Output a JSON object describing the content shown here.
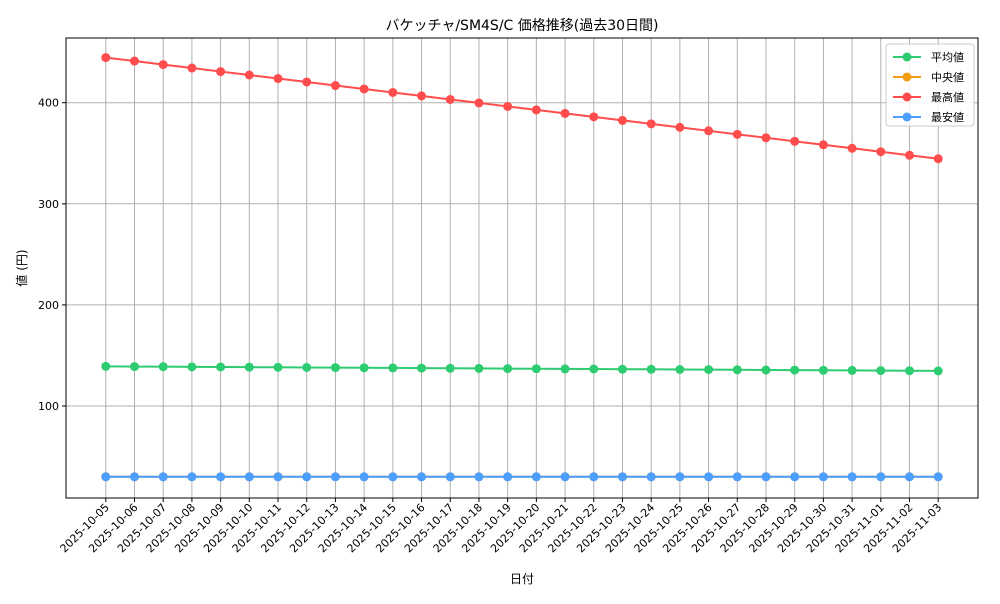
{
  "chart_data": {
    "type": "line",
    "title": "バケッチャ/SM4S/C 価格推移(過去30日間)",
    "xlabel": "日付",
    "ylabel": "値 (円)",
    "ylim": [
      9,
      464
    ],
    "yticks": [
      100,
      200,
      300,
      400
    ],
    "grid": true,
    "legend_position": "top-right",
    "categories": [
      "2025-10-05",
      "2025-10-06",
      "2025-10-07",
      "2025-10-08",
      "2025-10-09",
      "2025-10-10",
      "2025-10-11",
      "2025-10-12",
      "2025-10-13",
      "2025-10-14",
      "2025-10-15",
      "2025-10-16",
      "2025-10-17",
      "2025-10-18",
      "2025-10-19",
      "2025-10-20",
      "2025-10-21",
      "2025-10-22",
      "2025-10-23",
      "2025-10-24",
      "2025-10-25",
      "2025-10-26",
      "2025-10-27",
      "2025-10-28",
      "2025-10-29",
      "2025-10-30",
      "2025-10-31",
      "2025-11-01",
      "2025-11-02",
      "2025-11-03"
    ],
    "series": [
      {
        "name": "平均値",
        "color": "#2ecc71",
        "values": [
          139.2,
          139.0,
          138.9,
          138.7,
          138.6,
          138.4,
          138.3,
          138.1,
          138.0,
          137.8,
          137.7,
          137.5,
          137.3,
          137.2,
          137.0,
          136.9,
          136.7,
          136.6,
          136.4,
          136.3,
          136.1,
          136.0,
          135.8,
          135.6,
          135.5,
          135.3,
          135.2,
          135.0,
          134.9,
          134.7
        ]
      },
      {
        "name": "中央値",
        "color": "#f39c12",
        "values": [
          30,
          30,
          30,
          30,
          30,
          30,
          30,
          30,
          30,
          30,
          30,
          30,
          30,
          30,
          30,
          30,
          30,
          30,
          30,
          30,
          30,
          30,
          30,
          30,
          30,
          30,
          30,
          30,
          30,
          30
        ]
      },
      {
        "name": "最高値",
        "color": "#ff4d4d",
        "values": [
          444.6,
          441.2,
          437.7,
          434.3,
          430.8,
          427.4,
          423.9,
          420.5,
          417.0,
          413.6,
          410.1,
          406.7,
          403.2,
          399.8,
          396.3,
          392.9,
          389.4,
          386.0,
          382.5,
          379.1,
          375.6,
          372.2,
          368.7,
          365.3,
          361.8,
          358.4,
          354.9,
          351.5,
          348.0,
          344.6
        ]
      },
      {
        "name": "最安値",
        "color": "#4d9fff",
        "values": [
          30,
          30,
          30,
          30,
          30,
          30,
          30,
          30,
          30,
          30,
          30,
          30,
          30,
          30,
          30,
          30,
          30,
          30,
          30,
          30,
          30,
          30,
          30,
          30,
          30,
          30,
          30,
          30,
          30,
          30
        ]
      }
    ]
  }
}
